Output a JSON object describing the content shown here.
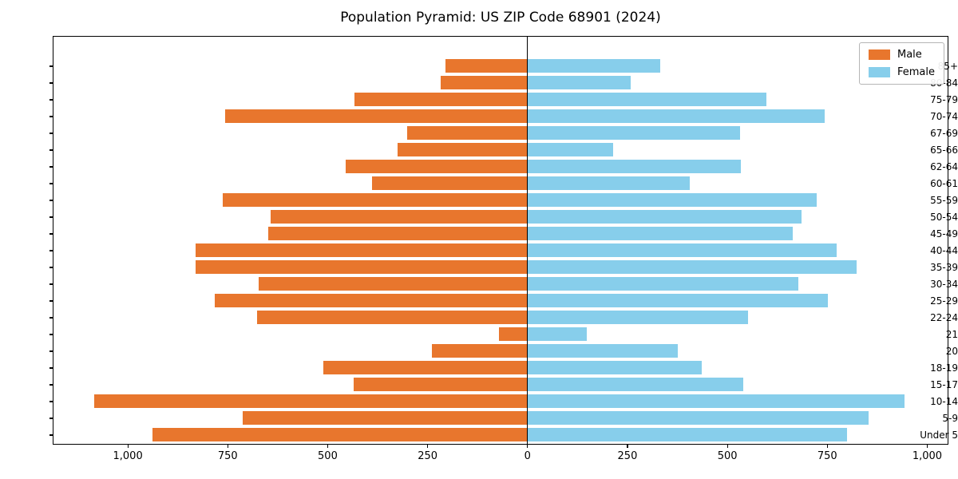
{
  "title": "Population Pyramid: US ZIP Code 68901 (2024)",
  "legend": {
    "male_label": "Male",
    "female_label": "Female"
  },
  "colors": {
    "male": "#e8762d",
    "female": "#87ceeb",
    "axis": "#000000"
  },
  "chart_data": {
    "type": "bar",
    "subtype": "population-pyramid",
    "orientation": "horizontal",
    "title": "Population Pyramid: US ZIP Code 68901 (2024)",
    "categories_top_to_bottom": [
      "85+",
      "80-84",
      "75-79",
      "70-74",
      "67-69",
      "65-66",
      "62-64",
      "60-61",
      "55-59",
      "50-54",
      "45-49",
      "40-44",
      "35-39",
      "30-34",
      "25-29",
      "22-24",
      "21",
      "20",
      "18-19",
      "15-17",
      "10-14",
      "5-9",
      "Under 5"
    ],
    "series": [
      {
        "name": "Male",
        "side": "left",
        "color": "#e8762d",
        "values": [
          204,
          217,
          432,
          756,
          301,
          325,
          453,
          388,
          762,
          641,
          647,
          830,
          829,
          671,
          781,
          676,
          70,
          239,
          509,
          434,
          1084,
          712,
          937
        ]
      },
      {
        "name": "Female",
        "side": "right",
        "color": "#87ceeb",
        "values": [
          333,
          260,
          598,
          744,
          533,
          215,
          534,
          407,
          724,
          687,
          665,
          774,
          824,
          679,
          753,
          552,
          150,
          377,
          437,
          540,
          944,
          855,
          801
        ]
      }
    ],
    "x_axis": {
      "tick_values": [
        -1000,
        -750,
        -500,
        -250,
        0,
        250,
        500,
        750,
        1000
      ],
      "tick_labels": [
        "1,000",
        "750",
        "500",
        "250",
        "0",
        "250",
        "500",
        "750",
        "1,000"
      ],
      "xlim": [
        -1185,
        1050
      ]
    },
    "legend": {
      "position": "upper-right",
      "entries": [
        "Male",
        "Female"
      ]
    },
    "grid": false
  }
}
